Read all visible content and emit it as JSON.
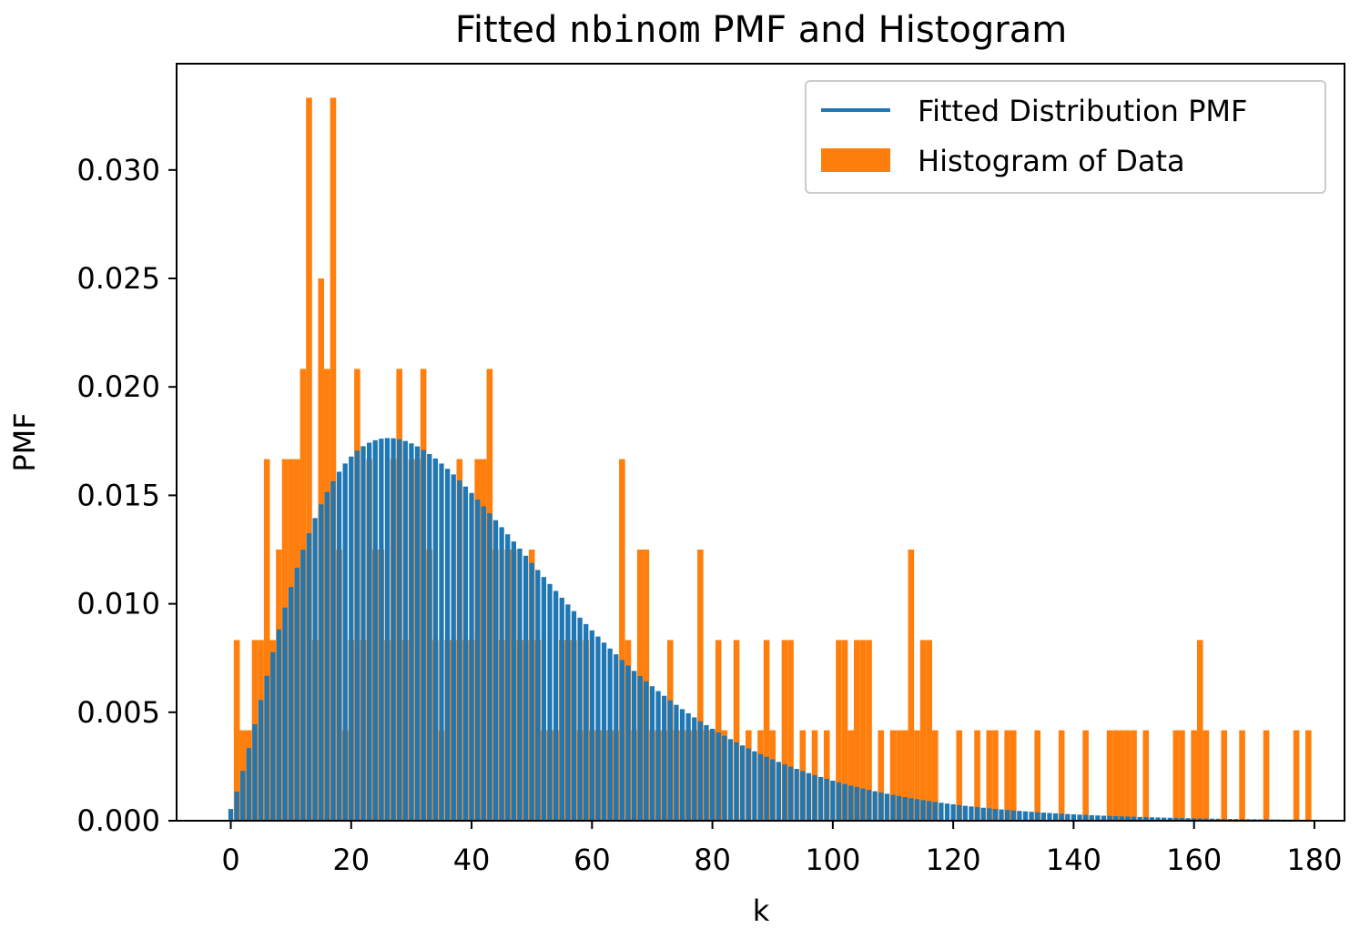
{
  "chart_data": {
    "type": "bar",
    "title_prefix": "Fitted ",
    "title_code": "nbinom",
    "title_suffix": " PMF and Histogram",
    "xlabel": "k",
    "ylabel": "PMF",
    "xlim": [
      -9,
      185
    ],
    "ylim": [
      0,
      0.0349
    ],
    "grid": false,
    "legend_position": "top-right",
    "xticks": [
      "0",
      "20",
      "40",
      "60",
      "80",
      "100",
      "120",
      "140",
      "160",
      "180"
    ],
    "yticks": [
      "0.000",
      "0.005",
      "0.010",
      "0.015",
      "0.020",
      "0.025",
      "0.030"
    ],
    "colors": {
      "pmf": "#1f77b4",
      "histogram": "#ff7f0e"
    },
    "series": [
      {
        "name": "Fitted Distribution PMF",
        "kind": "pmf",
        "nbinom_n": 2.64,
        "nbinom_p": 0.0578,
        "k_min": 0,
        "k_max": 179
      },
      {
        "name": "Histogram of Data",
        "kind": "histogram",
        "bin_width": 1,
        "bins": [
          [
            1,
            0.00833
          ],
          [
            2,
            0.00417
          ],
          [
            3,
            0.00417
          ],
          [
            4,
            0.00833
          ],
          [
            5,
            0.00833
          ],
          [
            6,
            0.01667
          ],
          [
            7,
            0.00833
          ],
          [
            8,
            0.0125
          ],
          [
            9,
            0.01667
          ],
          [
            10,
            0.01667
          ],
          [
            11,
            0.01667
          ],
          [
            12,
            0.02083
          ],
          [
            13,
            0.03333
          ],
          [
            14,
            0.00833
          ],
          [
            15,
            0.025
          ],
          [
            16,
            0.02083
          ],
          [
            17,
            0.03333
          ],
          [
            18,
            0.0125
          ],
          [
            19,
            0.00417
          ],
          [
            20,
            0.00833
          ],
          [
            21,
            0.02083
          ],
          [
            22,
            0.00833
          ],
          [
            23,
            0.01667
          ],
          [
            24,
            0.0125
          ],
          [
            25,
            0.0125
          ],
          [
            26,
            0.00833
          ],
          [
            27,
            0.01667
          ],
          [
            28,
            0.02083
          ],
          [
            29,
            0.00833
          ],
          [
            30,
            0.01667
          ],
          [
            31,
            0.01667
          ],
          [
            32,
            0.02083
          ],
          [
            33,
            0.0125
          ],
          [
            34,
            0.00833
          ],
          [
            35,
            0.00417
          ],
          [
            36,
            0.00833
          ],
          [
            37,
            0.00833
          ],
          [
            38,
            0.01667
          ],
          [
            39,
            0.00833
          ],
          [
            40,
            0.00833
          ],
          [
            41,
            0.01667
          ],
          [
            42,
            0.01667
          ],
          [
            43,
            0.02083
          ],
          [
            44,
            0.0125
          ],
          [
            45,
            0.00833
          ],
          [
            46,
            0.0125
          ],
          [
            47,
            0.0125
          ],
          [
            48,
            0.00833
          ],
          [
            49,
            0.00833
          ],
          [
            50,
            0.0125
          ],
          [
            51,
            0.00833
          ],
          [
            52,
            0.00417
          ],
          [
            53,
            0.00417
          ],
          [
            54,
            0.00417
          ],
          [
            55,
            0.00833
          ],
          [
            56,
            0.00833
          ],
          [
            57,
            0.00833
          ],
          [
            58,
            0.00417
          ],
          [
            59,
            0.00833
          ],
          [
            60,
            0.00417
          ],
          [
            61,
            0.00417
          ],
          [
            62,
            0.00417
          ],
          [
            63,
            0.00417
          ],
          [
            64,
            0.00417
          ],
          [
            65,
            0.01667
          ],
          [
            66,
            0.00833
          ],
          [
            67,
            0.00417
          ],
          [
            68,
            0.0125
          ],
          [
            69,
            0.0125
          ],
          [
            70,
            0.00417
          ],
          [
            71,
            0.00417
          ],
          [
            72,
            0.00417
          ],
          [
            73,
            0.00833
          ],
          [
            74,
            0.00417
          ],
          [
            75,
            0.00417
          ],
          [
            76,
            0.00417
          ],
          [
            77,
            0.00417
          ],
          [
            78,
            0.0125
          ],
          [
            79,
            0.00417
          ],
          [
            80,
            0.00417
          ],
          [
            81,
            0.00833
          ],
          [
            82,
            0.00417
          ],
          [
            84,
            0.00833
          ],
          [
            86,
            0.00417
          ],
          [
            88,
            0.00417
          ],
          [
            89,
            0.00833
          ],
          [
            90,
            0.00417
          ],
          [
            92,
            0.00833
          ],
          [
            93,
            0.00833
          ],
          [
            95,
            0.00417
          ],
          [
            97,
            0.00417
          ],
          [
            99,
            0.00417
          ],
          [
            101,
            0.00833
          ],
          [
            102,
            0.00833
          ],
          [
            103,
            0.00417
          ],
          [
            104,
            0.00833
          ],
          [
            105,
            0.00833
          ],
          [
            106,
            0.00833
          ],
          [
            108,
            0.00417
          ],
          [
            110,
            0.00417
          ],
          [
            111,
            0.00417
          ],
          [
            112,
            0.00417
          ],
          [
            113,
            0.0125
          ],
          [
            114,
            0.00417
          ],
          [
            115,
            0.00833
          ],
          [
            116,
            0.00833
          ],
          [
            117,
            0.00417
          ],
          [
            121,
            0.00417
          ],
          [
            124,
            0.00417
          ],
          [
            126,
            0.00417
          ],
          [
            127,
            0.00417
          ],
          [
            129,
            0.00417
          ],
          [
            130,
            0.00417
          ],
          [
            134,
            0.00417
          ],
          [
            138,
            0.00417
          ],
          [
            142,
            0.00417
          ],
          [
            146,
            0.00417
          ],
          [
            147,
            0.00417
          ],
          [
            148,
            0.00417
          ],
          [
            149,
            0.00417
          ],
          [
            150,
            0.00417
          ],
          [
            152,
            0.00417
          ],
          [
            157,
            0.00417
          ],
          [
            158,
            0.00417
          ],
          [
            160,
            0.00417
          ],
          [
            161,
            0.00833
          ],
          [
            162,
            0.00417
          ],
          [
            165,
            0.00417
          ],
          [
            168,
            0.00417
          ],
          [
            172,
            0.00417
          ],
          [
            177,
            0.00417
          ],
          [
            179,
            0.00417
          ]
        ]
      }
    ]
  }
}
